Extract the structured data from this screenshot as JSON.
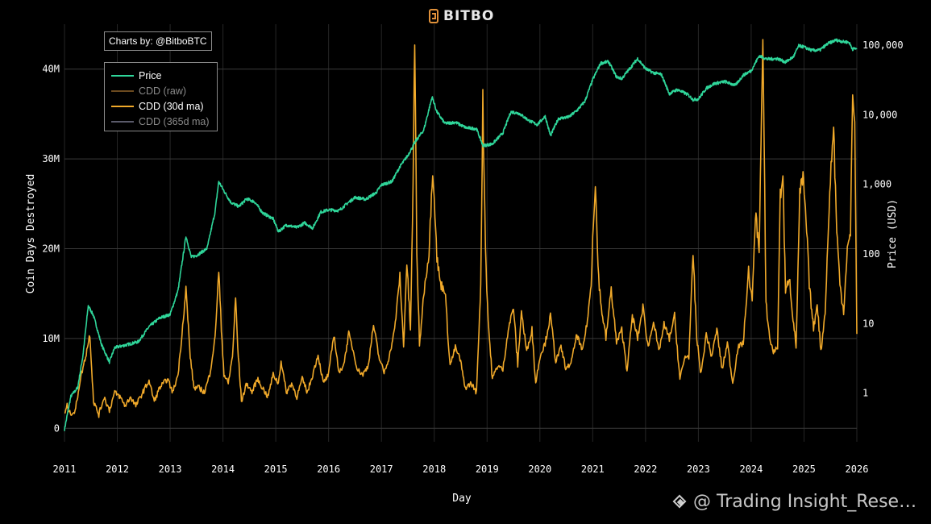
{
  "brand": {
    "name": "BITBO"
  },
  "credit": "Charts by: @BitboBTC",
  "watermark": "@ Trading Insight_Rese…",
  "legend": [
    {
      "label": "Price",
      "color": "#2fd69a",
      "dim": false
    },
    {
      "label": "CDD (raw)",
      "color": "#6b4a1f",
      "dim": true
    },
    {
      "label": "CDD (30d ma)",
      "color": "#f0a92a",
      "dim": false
    },
    {
      "label": "CDD (365d ma)",
      "color": "#5a5a6a",
      "dim": true
    }
  ],
  "chart_data": {
    "type": "line",
    "xlabel": "Day",
    "ylabel_left": "Coin Days Destroyed",
    "ylabel_right": "Price (USD)",
    "x_ticks": [
      "2011",
      "2012",
      "2013",
      "2014",
      "2015",
      "2016",
      "2017",
      "2018",
      "2019",
      "2020",
      "2021",
      "2022",
      "2023",
      "2024",
      "2025",
      "2026"
    ],
    "y_left_ticks": [
      {
        "v": 0,
        "label": "0"
      },
      {
        "v": 10,
        "label": "10M"
      },
      {
        "v": 20,
        "label": "20M"
      },
      {
        "v": 30,
        "label": "30M"
      },
      {
        "v": 40,
        "label": "40M"
      }
    ],
    "y_right_ticks": [
      {
        "v": 1,
        "label": "1"
      },
      {
        "v": 10,
        "label": "10"
      },
      {
        "v": 100,
        "label": "100"
      },
      {
        "v": 1000,
        "label": "1,000"
      },
      {
        "v": 10000,
        "label": "10,000"
      },
      {
        "v": 100000,
        "label": "100,000"
      }
    ],
    "x_range": [
      2011.0,
      2026.0
    ],
    "y_left_range_millions": [
      -1.5,
      45
    ],
    "y_right_log_range": [
      0.2,
      200000
    ],
    "grid": true,
    "legend_position": "top-left",
    "series": [
      {
        "name": "Price",
        "axis": "right",
        "scale": "log",
        "color": "#2fd69a",
        "points": [
          [
            2011.0,
            0.3
          ],
          [
            2011.12,
            0.9
          ],
          [
            2011.25,
            1.2
          ],
          [
            2011.35,
            3.5
          ],
          [
            2011.45,
            18
          ],
          [
            2011.55,
            13
          ],
          [
            2011.7,
            5
          ],
          [
            2011.85,
            2.8
          ],
          [
            2011.95,
            4.5
          ],
          [
            2012.2,
            5
          ],
          [
            2012.4,
            5.5
          ],
          [
            2012.6,
            9
          ],
          [
            2012.8,
            12
          ],
          [
            2013.0,
            13.5
          ],
          [
            2013.15,
            30
          ],
          [
            2013.3,
            180
          ],
          [
            2013.4,
            90
          ],
          [
            2013.5,
            95
          ],
          [
            2013.7,
            120
          ],
          [
            2013.85,
            400
          ],
          [
            2013.92,
            1100
          ],
          [
            2014.0,
            850
          ],
          [
            2014.15,
            550
          ],
          [
            2014.3,
            480
          ],
          [
            2014.45,
            620
          ],
          [
            2014.6,
            560
          ],
          [
            2014.75,
            390
          ],
          [
            2014.95,
            320
          ],
          [
            2015.05,
            210
          ],
          [
            2015.2,
            260
          ],
          [
            2015.4,
            240
          ],
          [
            2015.55,
            280
          ],
          [
            2015.7,
            235
          ],
          [
            2015.85,
            400
          ],
          [
            2016.0,
            430
          ],
          [
            2016.2,
            420
          ],
          [
            2016.35,
            530
          ],
          [
            2016.5,
            650
          ],
          [
            2016.7,
            610
          ],
          [
            2016.9,
            760
          ],
          [
            2017.0,
            980
          ],
          [
            2017.2,
            1100
          ],
          [
            2017.35,
            1800
          ],
          [
            2017.5,
            2600
          ],
          [
            2017.65,
            4200
          ],
          [
            2017.8,
            6000
          ],
          [
            2017.96,
            18000
          ],
          [
            2018.05,
            11000
          ],
          [
            2018.2,
            7500
          ],
          [
            2018.4,
            7800
          ],
          [
            2018.6,
            6500
          ],
          [
            2018.8,
            6300
          ],
          [
            2018.92,
            3600
          ],
          [
            2019.1,
            3800
          ],
          [
            2019.3,
            5500
          ],
          [
            2019.45,
            11000
          ],
          [
            2019.6,
            10500
          ],
          [
            2019.8,
            8200
          ],
          [
            2019.95,
            7200
          ],
          [
            2020.1,
            9500
          ],
          [
            2020.2,
            5000
          ],
          [
            2020.35,
            8800
          ],
          [
            2020.55,
            9300
          ],
          [
            2020.7,
            11500
          ],
          [
            2020.85,
            15500
          ],
          [
            2021.0,
            32000
          ],
          [
            2021.15,
            55000
          ],
          [
            2021.3,
            58000
          ],
          [
            2021.45,
            35000
          ],
          [
            2021.55,
            33000
          ],
          [
            2021.7,
            46000
          ],
          [
            2021.85,
            64000
          ],
          [
            2022.0,
            46000
          ],
          [
            2022.15,
            40000
          ],
          [
            2022.3,
            38000
          ],
          [
            2022.45,
            20000
          ],
          [
            2022.6,
            23000
          ],
          [
            2022.8,
            19500
          ],
          [
            2022.9,
            16500
          ],
          [
            2023.0,
            16800
          ],
          [
            2023.15,
            24000
          ],
          [
            2023.3,
            28000
          ],
          [
            2023.5,
            30000
          ],
          [
            2023.7,
            26500
          ],
          [
            2023.85,
            37000
          ],
          [
            2024.0,
            43000
          ],
          [
            2024.15,
            70000
          ],
          [
            2024.3,
            63000
          ],
          [
            2024.5,
            64000
          ],
          [
            2024.65,
            57000
          ],
          [
            2024.8,
            68000
          ],
          [
            2024.9,
            98000
          ],
          [
            2025.0,
            94000
          ],
          [
            2025.15,
            84000
          ],
          [
            2025.3,
            85000
          ],
          [
            2025.45,
            105000
          ],
          [
            2025.6,
            118000
          ],
          [
            2025.75,
            112000
          ],
          [
            2025.85,
            110000
          ],
          [
            2025.92,
            88000
          ],
          [
            2026.0,
            90000
          ]
        ]
      },
      {
        "name": "CDD (30d ma)",
        "axis": "left",
        "scale": "linear",
        "color": "#f0a92a",
        "points": [
          [
            2011.0,
            1.5
          ],
          [
            2011.05,
            2.5
          ],
          [
            2011.1,
            1.7
          ],
          [
            2011.2,
            1.8
          ],
          [
            2011.3,
            5.5
          ],
          [
            2011.4,
            8
          ],
          [
            2011.48,
            10.5
          ],
          [
            2011.55,
            3
          ],
          [
            2011.65,
            1.5
          ],
          [
            2011.75,
            3.5
          ],
          [
            2011.85,
            2
          ],
          [
            2011.95,
            4
          ],
          [
            2012.05,
            3.5
          ],
          [
            2012.15,
            2.5
          ],
          [
            2012.25,
            3.5
          ],
          [
            2012.35,
            2.5
          ],
          [
            2012.5,
            4.2
          ],
          [
            2012.6,
            5.3
          ],
          [
            2012.7,
            3
          ],
          [
            2012.8,
            4.5
          ],
          [
            2012.95,
            5.5
          ],
          [
            2013.05,
            4
          ],
          [
            2013.15,
            6
          ],
          [
            2013.2,
            9
          ],
          [
            2013.3,
            15.5
          ],
          [
            2013.38,
            8
          ],
          [
            2013.45,
            4.5
          ],
          [
            2013.55,
            4.5
          ],
          [
            2013.65,
            4
          ],
          [
            2013.75,
            6
          ],
          [
            2013.85,
            10
          ],
          [
            2013.92,
            17.5
          ],
          [
            2013.97,
            11
          ],
          [
            2014.02,
            6
          ],
          [
            2014.1,
            5
          ],
          [
            2014.18,
            8
          ],
          [
            2014.24,
            14.5
          ],
          [
            2014.28,
            9
          ],
          [
            2014.35,
            3
          ],
          [
            2014.45,
            5
          ],
          [
            2014.55,
            4
          ],
          [
            2014.65,
            5.5
          ],
          [
            2014.75,
            4.5
          ],
          [
            2014.85,
            3.5
          ],
          [
            2014.95,
            6
          ],
          [
            2015.05,
            5
          ],
          [
            2015.1,
            7.5
          ],
          [
            2015.2,
            4
          ],
          [
            2015.3,
            5
          ],
          [
            2015.4,
            3.5
          ],
          [
            2015.5,
            5.5
          ],
          [
            2015.6,
            4
          ],
          [
            2015.7,
            6
          ],
          [
            2015.8,
            8.2
          ],
          [
            2015.9,
            5
          ],
          [
            2016.0,
            6
          ],
          [
            2016.1,
            10.5
          ],
          [
            2016.2,
            6
          ],
          [
            2016.3,
            7.5
          ],
          [
            2016.38,
            10.5
          ],
          [
            2016.45,
            9
          ],
          [
            2016.55,
            6.5
          ],
          [
            2016.65,
            6
          ],
          [
            2016.75,
            7
          ],
          [
            2016.85,
            11.5
          ],
          [
            2016.95,
            8
          ],
          [
            2017.05,
            6.2
          ],
          [
            2017.15,
            8
          ],
          [
            2017.25,
            11
          ],
          [
            2017.35,
            17
          ],
          [
            2017.42,
            9
          ],
          [
            2017.48,
            18.5
          ],
          [
            2017.55,
            11
          ],
          [
            2017.6,
            27
          ],
          [
            2017.63,
            43.5
          ],
          [
            2017.67,
            20
          ],
          [
            2017.72,
            9
          ],
          [
            2017.8,
            15
          ],
          [
            2017.9,
            19.5
          ],
          [
            2017.97,
            29
          ],
          [
            2018.0,
            26
          ],
          [
            2018.05,
            19
          ],
          [
            2018.12,
            16
          ],
          [
            2018.2,
            15.5
          ],
          [
            2018.3,
            7
          ],
          [
            2018.4,
            9
          ],
          [
            2018.5,
            7.5
          ],
          [
            2018.58,
            4.5
          ],
          [
            2018.7,
            5
          ],
          [
            2018.8,
            4
          ],
          [
            2018.88,
            16
          ],
          [
            2018.92,
            36.5
          ],
          [
            2018.97,
            20
          ],
          [
            2019.02,
            12
          ],
          [
            2019.1,
            5.5
          ],
          [
            2019.2,
            7
          ],
          [
            2019.3,
            6.5
          ],
          [
            2019.4,
            11
          ],
          [
            2019.5,
            13.5
          ],
          [
            2019.58,
            7
          ],
          [
            2019.65,
            13
          ],
          [
            2019.75,
            8.5
          ],
          [
            2019.85,
            11
          ],
          [
            2019.92,
            5
          ],
          [
            2020.0,
            8
          ],
          [
            2020.1,
            9.5
          ],
          [
            2020.2,
            12.5
          ],
          [
            2020.3,
            7.5
          ],
          [
            2020.4,
            9
          ],
          [
            2020.5,
            6.5
          ],
          [
            2020.6,
            7.5
          ],
          [
            2020.7,
            10.5
          ],
          [
            2020.8,
            8.5
          ],
          [
            2020.9,
            12
          ],
          [
            2020.97,
            16
          ],
          [
            2021.0,
            21.5
          ],
          [
            2021.05,
            27.5
          ],
          [
            2021.1,
            18
          ],
          [
            2021.15,
            14
          ],
          [
            2021.25,
            10
          ],
          [
            2021.35,
            15.5
          ],
          [
            2021.45,
            9.5
          ],
          [
            2021.55,
            11
          ],
          [
            2021.65,
            6.5
          ],
          [
            2021.75,
            12.5
          ],
          [
            2021.85,
            10
          ],
          [
            2021.95,
            13.5
          ],
          [
            2022.05,
            9
          ],
          [
            2022.15,
            12
          ],
          [
            2022.25,
            8.5
          ],
          [
            2022.35,
            11.5
          ],
          [
            2022.45,
            10
          ],
          [
            2022.55,
            12.5
          ],
          [
            2022.65,
            5.5
          ],
          [
            2022.75,
            8
          ],
          [
            2022.82,
            8
          ],
          [
            2022.9,
            19.5
          ],
          [
            2022.97,
            10
          ],
          [
            2023.05,
            6
          ],
          [
            2023.15,
            10.5
          ],
          [
            2023.25,
            8
          ],
          [
            2023.35,
            11
          ],
          [
            2023.45,
            6.5
          ],
          [
            2023.55,
            9.5
          ],
          [
            2023.65,
            5
          ],
          [
            2023.75,
            9
          ],
          [
            2023.85,
            9.5
          ],
          [
            2023.95,
            17.5
          ],
          [
            2024.02,
            14
          ],
          [
            2024.08,
            24
          ],
          [
            2024.15,
            20
          ],
          [
            2024.22,
            43
          ],
          [
            2024.28,
            14
          ],
          [
            2024.35,
            10
          ],
          [
            2024.42,
            8.5
          ],
          [
            2024.5,
            9
          ],
          [
            2024.55,
            26
          ],
          [
            2024.6,
            28
          ],
          [
            2024.65,
            15
          ],
          [
            2024.72,
            17
          ],
          [
            2024.78,
            13
          ],
          [
            2024.85,
            9
          ],
          [
            2024.92,
            26
          ],
          [
            2024.98,
            28
          ],
          [
            2025.05,
            22
          ],
          [
            2025.1,
            16
          ],
          [
            2025.18,
            11
          ],
          [
            2025.25,
            14
          ],
          [
            2025.32,
            8.5
          ],
          [
            2025.4,
            13
          ],
          [
            2025.5,
            28
          ],
          [
            2025.56,
            33.5
          ],
          [
            2025.62,
            22
          ],
          [
            2025.68,
            16
          ],
          [
            2025.75,
            13
          ],
          [
            2025.82,
            20
          ],
          [
            2025.88,
            21.5
          ],
          [
            2025.92,
            38
          ],
          [
            2025.96,
            34
          ],
          [
            2026.0,
            10.5
          ]
        ]
      }
    ]
  }
}
